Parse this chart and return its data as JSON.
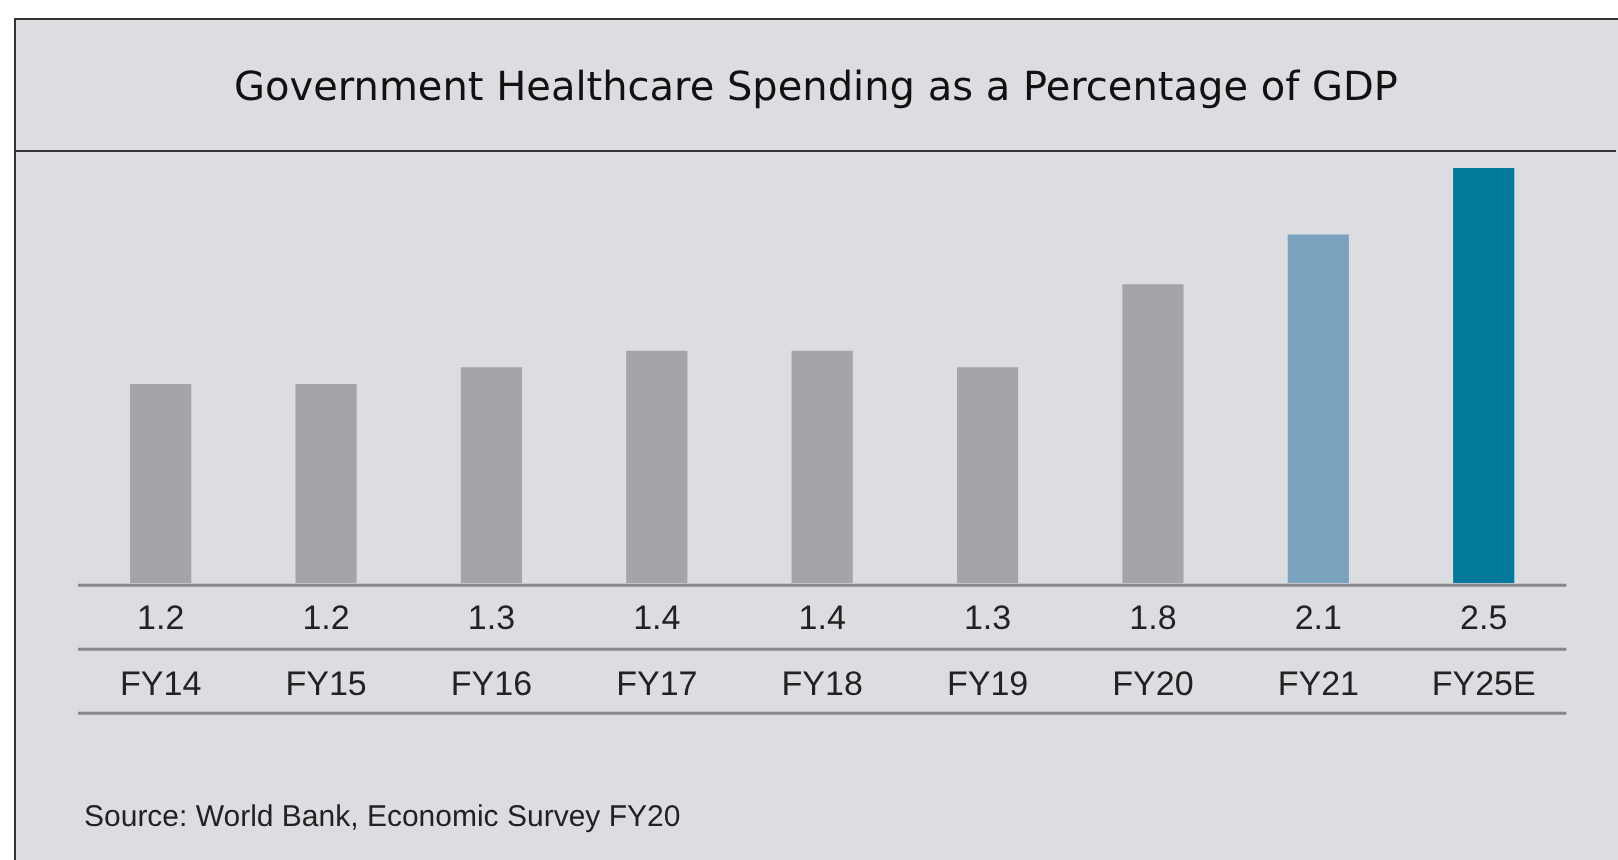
{
  "chart_data": {
    "type": "bar",
    "title": "Government Healthcare Spending as a Percentage of GDP",
    "categories": [
      "FY14",
      "FY15",
      "FY16",
      "FY17",
      "FY18",
      "FY19",
      "FY20",
      "FY21",
      "FY25E"
    ],
    "values": [
      1.2,
      1.2,
      1.3,
      1.4,
      1.4,
      1.3,
      1.8,
      2.1,
      2.5
    ],
    "colors": [
      "#a4a5a8",
      "#a4a5a8",
      "#a4a5a8",
      "#a4a5a8",
      "#a4a5a8",
      "#a4a5a8",
      "#a4a5a8",
      "#7ba3bf",
      "#037a9c"
    ],
    "data_labels": true,
    "grid": false,
    "legend": false,
    "annotations": [
      "Source: World Bank, Economic Survey FY20"
    ]
  }
}
